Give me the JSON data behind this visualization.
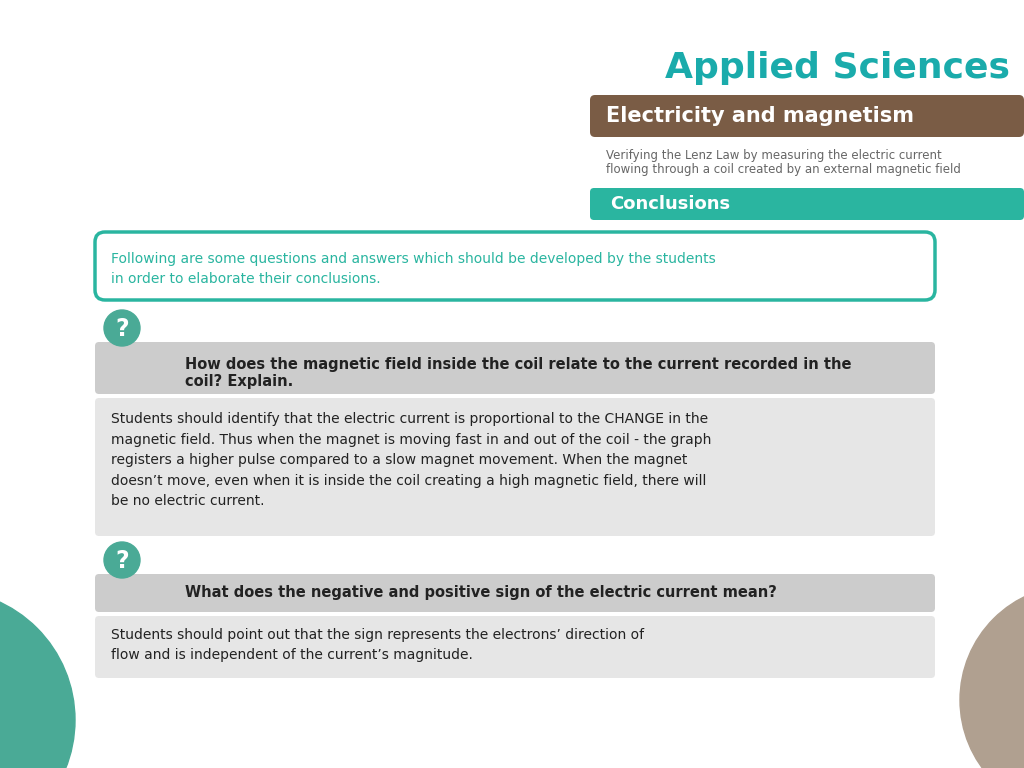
{
  "title_brand": "Applied Sciences",
  "title_brand_color": "#1aabab",
  "subtitle_bar_text": "Electricity and magnetism",
  "subtitle_bar_color": "#7a5c45",
  "subtitle_bar_text_color": "#ffffff",
  "subsubtitle_line1": "Verifying the Lenz Law by measuring the electric current",
  "subsubtitle_line2": "flowing through a coil created by an external magnetic field",
  "subsubtitle_color": "#666666",
  "conclusions_bar_text": "Conclusions",
  "conclusions_bar_color": "#2ab5a0",
  "conclusions_bar_text_color": "#ffffff",
  "intro_text_line1": "Following are some questions and answers which should be developed by the students",
  "intro_text_line2": "in order to elaborate their conclusions.",
  "intro_box_border_color": "#2ab5a0",
  "intro_text_color": "#2ab5a0",
  "q1_header_line1": "How does the magnetic field inside the coil relate to the current recorded in the",
  "q1_header_line2": "coil? Explain.",
  "q1_header_bg": "#cccccc",
  "q1_answer": "Students should identify that the electric current is proportional to the CHANGE in the\nmagnetic field. Thus when the magnet is moving fast in and out of the coil - the graph\nregisters a higher pulse compared to a slow magnet movement. When the magnet\ndoesn’t move, even when it is inside the coil creating a high magnetic field, there will\nbe no electric current.",
  "q1_answer_bg": "#e6e6e6",
  "q2_header": "What does the negative and positive sign of the electric current mean?",
  "q2_header_bg": "#cccccc",
  "q2_answer_line1": "Students should point out that the sign represents the electrons’ direction of",
  "q2_answer_line2": "flow and is independent of the current’s magnitude.",
  "q2_answer_bg": "#e6e6e6",
  "question_circle_color": "#4aaa96",
  "question_mark_color": "#ffffff",
  "bg_color": "#ffffff",
  "decoration_circle_teal_color": "#4aaa96",
  "decoration_circle_brown_color": "#b0a090",
  "text_dark": "#222222"
}
